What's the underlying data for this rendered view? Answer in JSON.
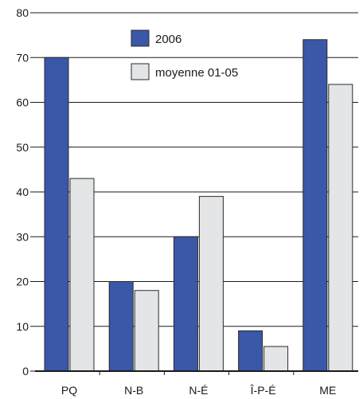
{
  "chart_data": {
    "type": "bar",
    "categories": [
      "PQ",
      "N-B",
      "N-É",
      "Î-P-É",
      "ME"
    ],
    "series": [
      {
        "name": "2006",
        "values": [
          70,
          20,
          30,
          9,
          74
        ],
        "color": "#3a57a8"
      },
      {
        "name": "moyenne 01-05",
        "values": [
          43,
          18,
          39,
          5.5,
          64
        ],
        "color": "#e4e5e7"
      }
    ],
    "ylim": [
      0,
      80
    ],
    "yticks": [
      "0",
      "10",
      "20",
      "30",
      "40",
      "50",
      "60",
      "70",
      "80"
    ],
    "grid": true,
    "legend_placement": "top-center",
    "bar_outline_color": "#2b2b2b",
    "grid_color": "#1a1a1a"
  }
}
